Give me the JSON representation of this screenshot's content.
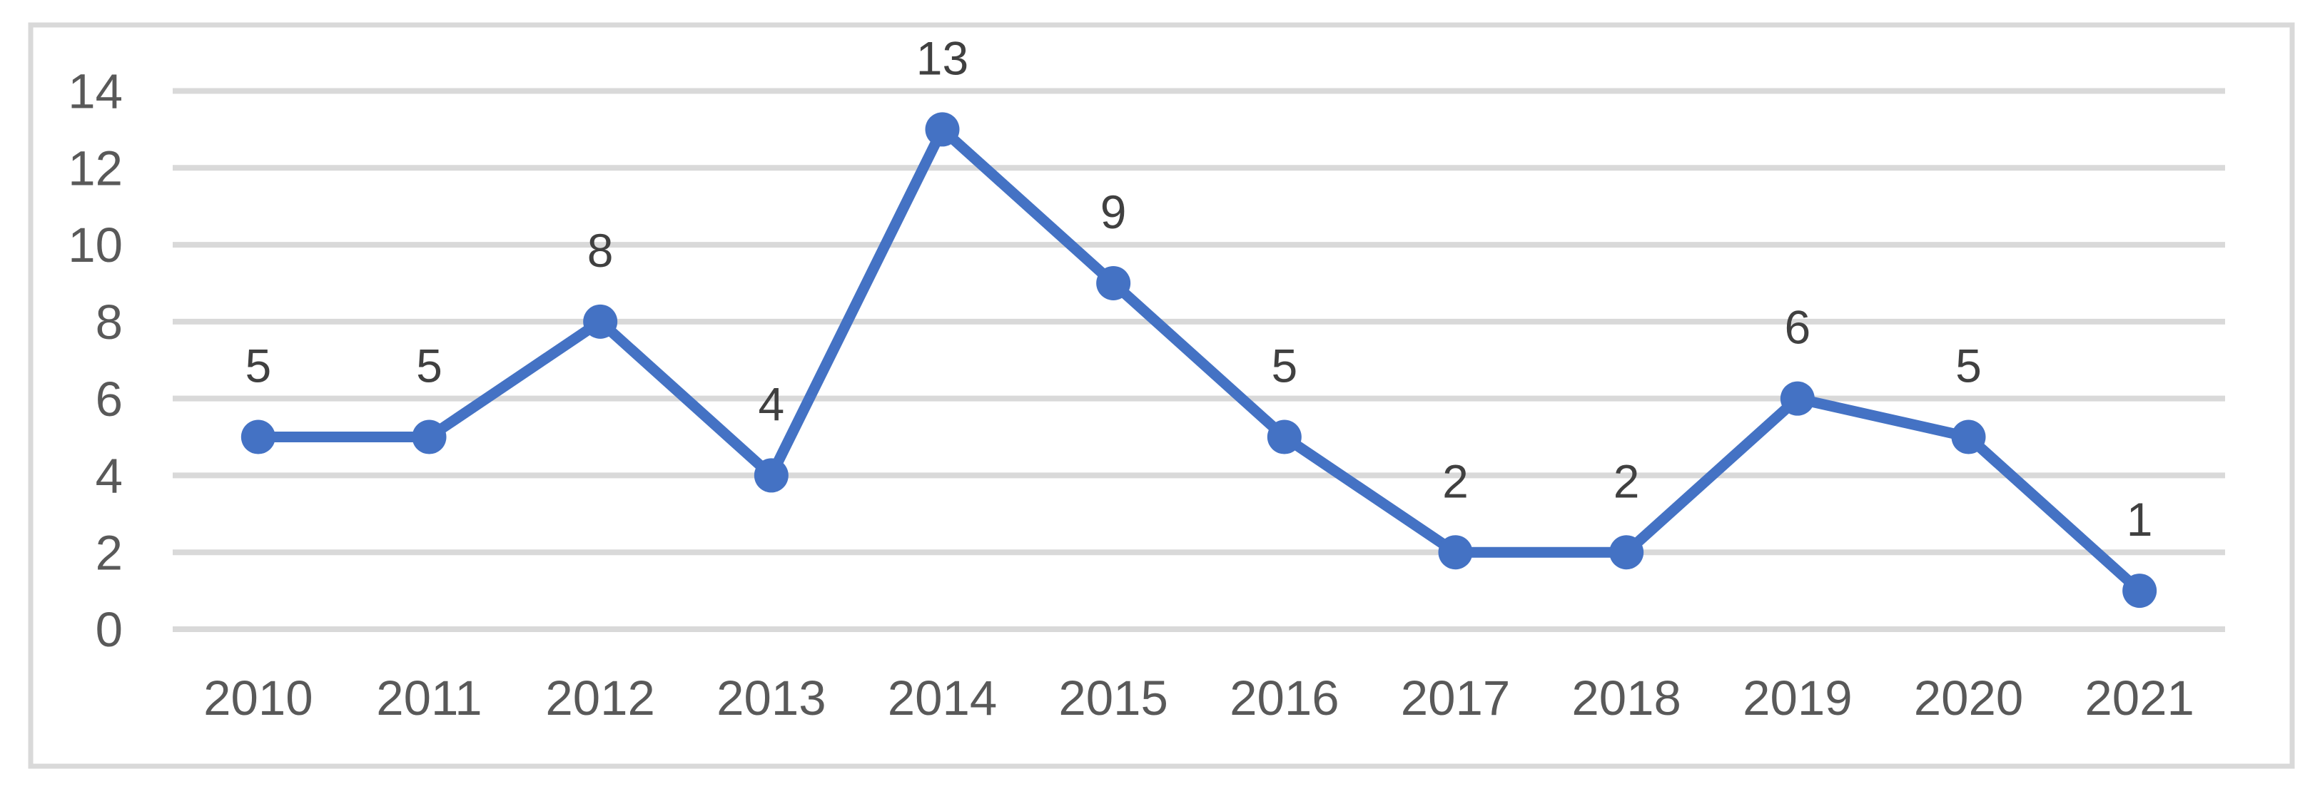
{
  "chart_data": {
    "type": "line",
    "title": "",
    "xlabel": "",
    "ylabel": "",
    "categories": [
      "2010",
      "2011",
      "2012",
      "2013",
      "2014",
      "2015",
      "2016",
      "2017",
      "2018",
      "2019",
      "2020",
      "2021"
    ],
    "values": [
      5,
      5,
      8,
      4,
      13,
      9,
      5,
      2,
      2,
      6,
      5,
      1
    ],
    "data_labels": [
      "5",
      "5",
      "8",
      "4",
      "13",
      "9",
      "5",
      "2",
      "2",
      "6",
      "5",
      "1"
    ],
    "ylim": [
      0,
      14
    ],
    "yticks": [
      0,
      2,
      4,
      6,
      8,
      10,
      12,
      14
    ],
    "grid": true,
    "legend": false,
    "marker": "circle",
    "colors": {
      "line": "#4472C4",
      "marker": "#4472C4",
      "gridline": "#D9D9D9",
      "border": "#D9D9D9",
      "tick_label": "#595959",
      "data_label": "#404040",
      "background": "#FFFFFF"
    }
  }
}
